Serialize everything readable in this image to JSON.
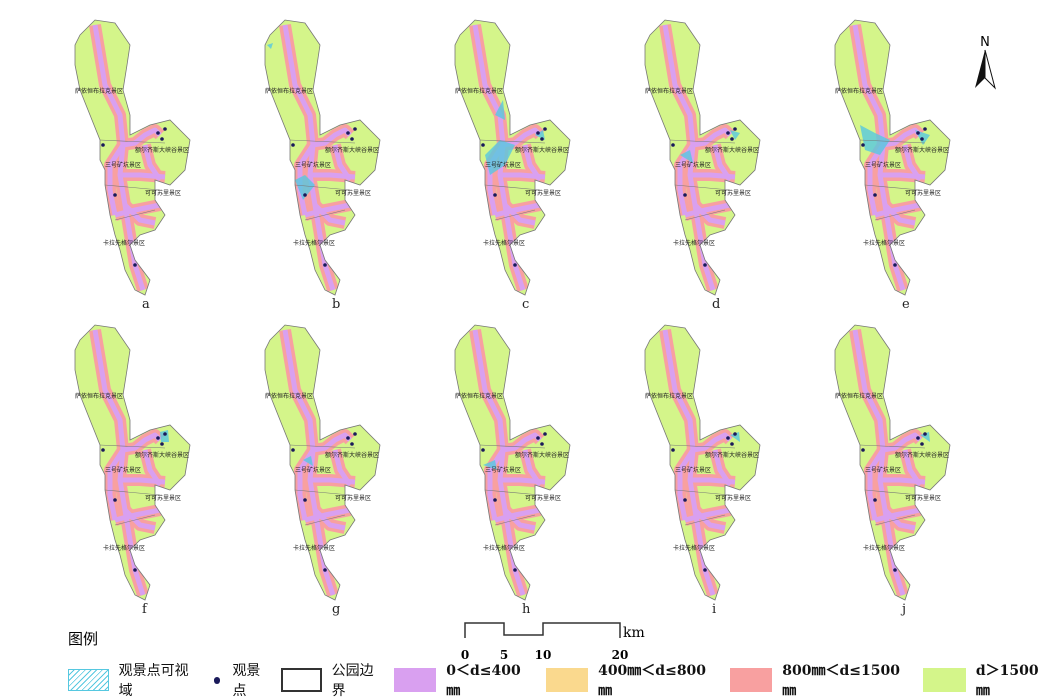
{
  "panels": [
    {
      "label": "a",
      "viewshed": false
    },
    {
      "label": "b",
      "viewshed": true
    },
    {
      "label": "c",
      "viewshed": true
    },
    {
      "label": "d",
      "viewshed": true
    },
    {
      "label": "e",
      "viewshed": true
    },
    {
      "label": "f",
      "viewshed": true
    },
    {
      "label": "g",
      "viewshed": true
    },
    {
      "label": "h",
      "viewshed": true
    },
    {
      "label": "i",
      "viewshed": true
    },
    {
      "label": "j",
      "viewshed": true
    }
  ],
  "places": [
    "萨依恒布拉克景区",
    "额尔齐斯大峡谷景区",
    "三号矿坑景区",
    "可可苏里景区",
    "卡拉先格尔景区"
  ],
  "north": "N",
  "scale": {
    "ticks": [
      "0",
      "5",
      "10",
      "20"
    ],
    "unit": "km"
  },
  "legend": {
    "title": "图例",
    "items": [
      {
        "label": "观景点可视域",
        "kind": "hatch",
        "color": "#56c8e0"
      },
      {
        "label": "观景点",
        "kind": "dot",
        "color": "#1a1a5a"
      },
      {
        "label": "公园边界",
        "kind": "outline",
        "color": "#333333"
      },
      {
        "label": "0＜d≤400㎜",
        "kind": "fill",
        "color": "#d9a0f0"
      },
      {
        "label": "400㎜＜d≤800㎜",
        "kind": "fill",
        "color": "#fad98e"
      },
      {
        "label": "800㎜＜d≤1500㎜",
        "kind": "fill",
        "color": "#f8a0a0"
      },
      {
        "label": "d＞1500㎜",
        "kind": "fill",
        "color": "#d4f58a"
      }
    ]
  }
}
